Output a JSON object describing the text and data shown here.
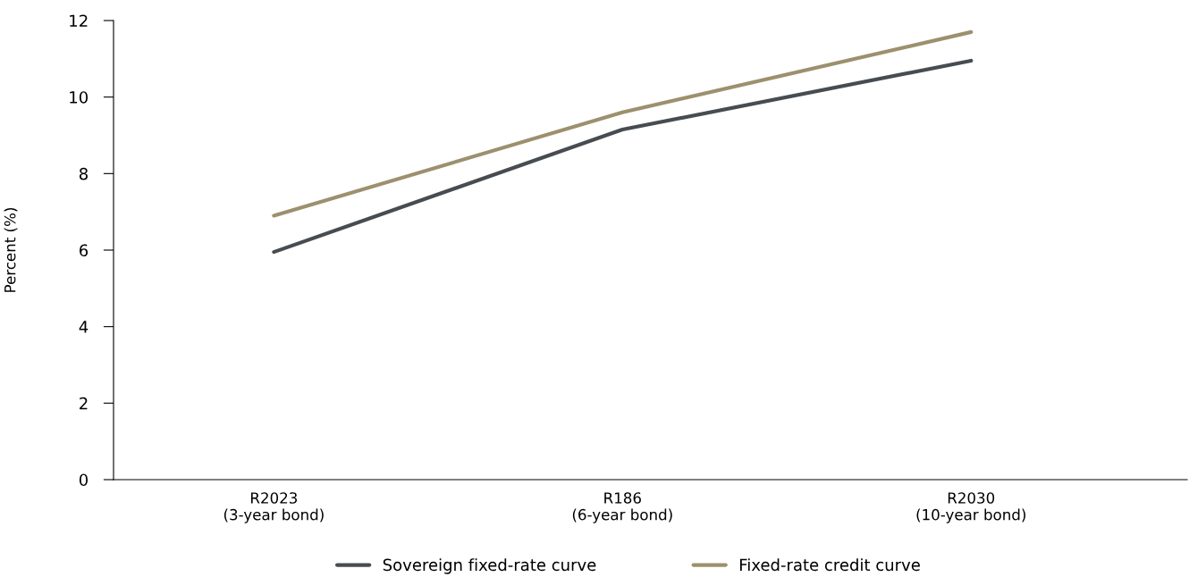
{
  "chart_data": {
    "type": "line",
    "ylabel": "Percent (%)",
    "categories": [
      "R2023\n(3-year bond)",
      "R186\n(6-year bond)",
      "R2030\n(10-year bond)"
    ],
    "series": [
      {
        "name": "Sovereign fixed-rate curve",
        "color": "#464c52",
        "values": [
          5.95,
          9.15,
          10.95
        ]
      },
      {
        "name": "Fixed-rate credit curve",
        "color": "#9c906e",
        "values": [
          6.9,
          9.6,
          11.7
        ]
      }
    ],
    "ylim": [
      0,
      12
    ],
    "yticks": [
      0,
      2,
      4,
      6,
      8,
      10,
      12
    ],
    "grid": false,
    "legend": "bottom",
    "marker": "none",
    "line_style": "solid"
  }
}
